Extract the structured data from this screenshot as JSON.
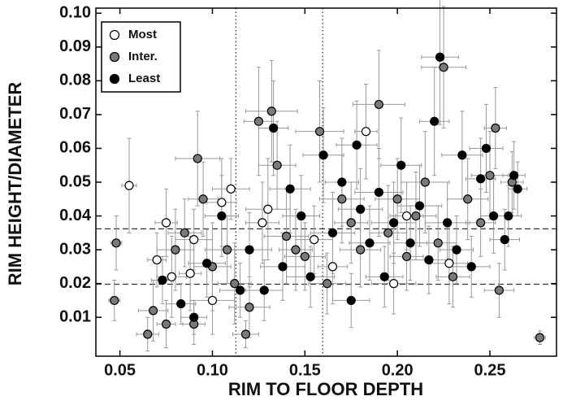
{
  "chart_data": {
    "type": "scatter",
    "xlabel": "RIM TO FLOOR DEPTH",
    "ylabel": "RIM HEIGHT/DIAMETER",
    "xlim": [
      0.037,
      0.286
    ],
    "ylim": [
      -0.0015,
      0.1015
    ],
    "xticks": [
      0.05,
      {
        "value": 0.1,
        "label": "0.10"
      },
      0.15,
      {
        "value": 0.2,
        "label": "0.20"
      },
      0.25
    ],
    "yticks": [
      0.01,
      0.02,
      0.03,
      0.04,
      0.05,
      0.06,
      0.07,
      0.08,
      0.09,
      {
        "value": 0.1,
        "label": "0.10"
      }
    ],
    "vlines": [
      0.1127,
      0.1596
    ],
    "hlines": [
      0.0362,
      0.0198
    ],
    "legend": "upper left",
    "series": [
      {
        "name": "Most",
        "color": "#ffffff",
        "x": [
          0.055,
          0.075,
          0.07,
          0.078,
          0.09,
          0.088,
          0.1,
          0.105,
          0.11,
          0.127,
          0.13,
          0.155,
          0.165,
          0.183,
          0.198,
          0.228,
          0.205
        ],
        "y": [
          0.049,
          0.038,
          0.027,
          0.022,
          0.033,
          0.023,
          0.015,
          0.044,
          0.048,
          0.038,
          0.042,
          0.033,
          0.025,
          0.065,
          0.02,
          0.026,
          0.04
        ],
        "xerr": [
          0.004,
          0.006,
          0.005,
          0.008,
          0.01,
          0.006,
          0.012,
          0.008,
          0.01,
          0.009,
          0.012,
          0.01,
          0.008,
          0.006,
          0.012,
          0.01,
          0.009
        ],
        "yerr": [
          0.014,
          0.01,
          0.008,
          0.012,
          0.009,
          0.011,
          0.01,
          0.013,
          0.009,
          0.012,
          0.015,
          0.01,
          0.011,
          0.014,
          0.009,
          0.012,
          0.01
        ]
      },
      {
        "name": "Inter.",
        "color": "#7a7a7a",
        "x": [
          0.048,
          0.047,
          0.065,
          0.068,
          0.075,
          0.08,
          0.085,
          0.092,
          0.095,
          0.1,
          0.108,
          0.112,
          0.12,
          0.125,
          0.132,
          0.135,
          0.14,
          0.145,
          0.15,
          0.158,
          0.162,
          0.17,
          0.175,
          0.18,
          0.19,
          0.195,
          0.2,
          0.205,
          0.21,
          0.215,
          0.222,
          0.225,
          0.23,
          0.238,
          0.245,
          0.25,
          0.253,
          0.255,
          0.262,
          0.277,
          0.118,
          0.09
        ],
        "y": [
          0.032,
          0.015,
          0.005,
          0.012,
          0.008,
          0.03,
          0.035,
          0.057,
          0.045,
          0.025,
          0.03,
          0.02,
          0.013,
          0.068,
          0.071,
          0.055,
          0.034,
          0.03,
          0.028,
          0.065,
          0.02,
          0.045,
          0.038,
          0.03,
          0.073,
          0.035,
          0.045,
          0.028,
          0.04,
          0.05,
          0.032,
          0.084,
          0.022,
          0.045,
          0.038,
          0.052,
          0.066,
          0.018,
          0.05,
          0.004,
          0.005,
          0.008
        ],
        "xerr": [
          0.003,
          0.003,
          0.006,
          0.008,
          0.005,
          0.01,
          0.009,
          0.012,
          0.008,
          0.01,
          0.012,
          0.009,
          0.011,
          0.008,
          0.014,
          0.01,
          0.012,
          0.009,
          0.011,
          0.013,
          0.01,
          0.012,
          0.009,
          0.011,
          0.014,
          0.01,
          0.012,
          0.009,
          0.011,
          0.013,
          0.01,
          0.012,
          0.009,
          0.011,
          0.008,
          0.01,
          0.006,
          0.008,
          0.006,
          0.003,
          0.007,
          0.006
        ],
        "yerr": [
          0.008,
          0.006,
          0.005,
          0.009,
          0.007,
          0.012,
          0.01,
          0.014,
          0.011,
          0.013,
          0.01,
          0.012,
          0.009,
          0.016,
          0.015,
          0.013,
          0.014,
          0.012,
          0.01,
          0.015,
          0.009,
          0.013,
          0.012,
          0.011,
          0.016,
          0.014,
          0.012,
          0.01,
          0.013,
          0.015,
          0.011,
          0.018,
          0.009,
          0.012,
          0.01,
          0.013,
          0.012,
          0.008,
          0.009,
          0.002,
          0.004,
          0.006
        ]
      },
      {
        "name": "Least",
        "color": "#000000",
        "x": [
          0.073,
          0.083,
          0.09,
          0.097,
          0.105,
          0.115,
          0.12,
          0.128,
          0.133,
          0.138,
          0.142,
          0.148,
          0.153,
          0.16,
          0.165,
          0.17,
          0.175,
          0.18,
          0.185,
          0.19,
          0.193,
          0.198,
          0.202,
          0.207,
          0.212,
          0.217,
          0.22,
          0.223,
          0.227,
          0.232,
          0.235,
          0.24,
          0.245,
          0.248,
          0.252,
          0.258,
          0.263,
          0.265,
          0.26,
          0.178
        ],
        "y": [
          0.021,
          0.014,
          0.01,
          0.026,
          0.04,
          0.018,
          0.03,
          0.018,
          0.066,
          0.025,
          0.048,
          0.04,
          0.022,
          0.058,
          0.035,
          0.05,
          0.015,
          0.042,
          0.032,
          0.047,
          0.022,
          0.038,
          0.055,
          0.032,
          0.043,
          0.027,
          0.068,
          0.087,
          0.038,
          0.03,
          0.058,
          0.025,
          0.051,
          0.06,
          0.04,
          0.033,
          0.052,
          0.048,
          0.04,
          0.061
        ],
        "xerr": [
          0.006,
          0.008,
          0.007,
          0.01,
          0.009,
          0.011,
          0.012,
          0.01,
          0.008,
          0.012,
          0.011,
          0.01,
          0.013,
          0.011,
          0.012,
          0.009,
          0.01,
          0.012,
          0.011,
          0.013,
          0.01,
          0.012,
          0.011,
          0.009,
          0.012,
          0.01,
          0.008,
          0.01,
          0.012,
          0.009,
          0.011,
          0.01,
          0.008,
          0.009,
          0.007,
          0.008,
          0.006,
          0.005,
          0.007,
          0.011
        ],
        "yerr": [
          0.007,
          0.006,
          0.005,
          0.01,
          0.012,
          0.008,
          0.011,
          0.009,
          0.014,
          0.01,
          0.013,
          0.012,
          0.009,
          0.014,
          0.012,
          0.013,
          0.008,
          0.012,
          0.011,
          0.013,
          0.009,
          0.012,
          0.014,
          0.011,
          0.012,
          0.01,
          0.016,
          0.02,
          0.012,
          0.01,
          0.013,
          0.009,
          0.012,
          0.013,
          0.011,
          0.009,
          0.01,
          0.008,
          0.009,
          0.013
        ]
      }
    ]
  }
}
